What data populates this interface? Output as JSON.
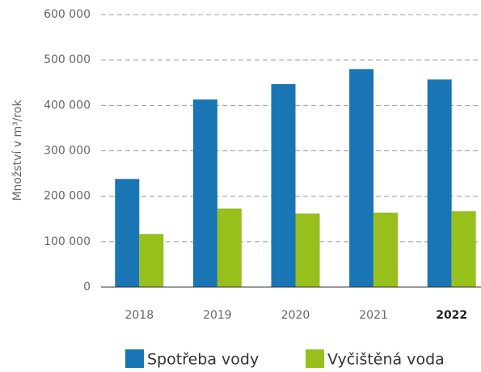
{
  "chart_data": {
    "type": "bar",
    "y_label": "Množství v m³/rok",
    "categories": [
      "2018",
      "2019",
      "2020",
      "2021",
      "2022"
    ],
    "highlight_category": 4,
    "series": [
      {
        "name": "Spotřeba vody",
        "color": "#1a75b4",
        "values": [
          238000,
          413000,
          447000,
          480000,
          457000
        ]
      },
      {
        "name": "Vyčištěná voda",
        "color": "#97c01d",
        "values": [
          117000,
          173000,
          162000,
          164000,
          167000
        ]
      }
    ],
    "ylim": [
      0,
      600000
    ],
    "yticks": [
      0,
      {
        "value": 100000,
        "label": "100 000"
      },
      {
        "value": 200000,
        "label": "200 000"
      },
      {
        "value": 300000,
        "label": "300 000"
      },
      {
        "value": 400000,
        "label": "400 000"
      },
      {
        "value": 500000,
        "label": "500 000"
      },
      {
        "value": 600000,
        "label": "600 000"
      }
    ],
    "grid": true
  }
}
